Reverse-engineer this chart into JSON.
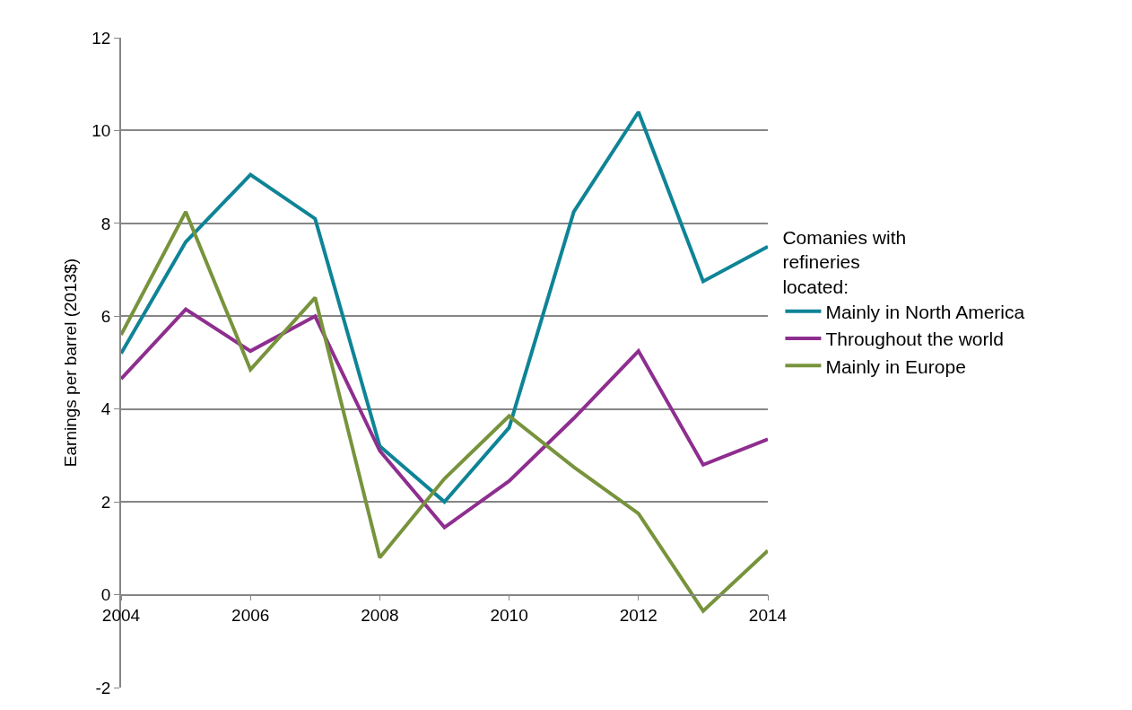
{
  "chart_data": {
    "type": "line",
    "ylabel": "Earnings per barrel (2013$)",
    "legend_title": "Comanies with refineries located:",
    "x": [
      2004,
      2005,
      2006,
      2007,
      2008,
      2009,
      2010,
      2011,
      2012,
      2013,
      2014
    ],
    "series": [
      {
        "name": "Mainly in North America",
        "color": "#0e8496",
        "values": [
          5.2,
          7.6,
          9.05,
          8.1,
          3.2,
          2.0,
          3.6,
          8.25,
          10.4,
          6.75,
          7.5
        ]
      },
      {
        "name": "Throughout the world",
        "color": "#8e2e8f",
        "values": [
          4.65,
          6.15,
          5.25,
          6.0,
          3.1,
          1.45,
          2.45,
          3.8,
          5.25,
          2.8,
          3.35
        ]
      },
      {
        "name": "Mainly in Europe",
        "color": "#77933c",
        "values": [
          5.6,
          8.25,
          4.85,
          6.4,
          0.8,
          2.5,
          3.85,
          2.75,
          1.75,
          -0.35,
          0.95
        ]
      }
    ],
    "xlim": [
      2004,
      2014
    ],
    "xticks": [
      2004,
      2006,
      2008,
      2010,
      2012,
      2014
    ],
    "ylim": [
      -2,
      12
    ],
    "yticks": [
      -2,
      0,
      2,
      4,
      6,
      8,
      10,
      12
    ],
    "grid": "y",
    "legend": "right",
    "marker": "none",
    "line_style": "solid"
  }
}
